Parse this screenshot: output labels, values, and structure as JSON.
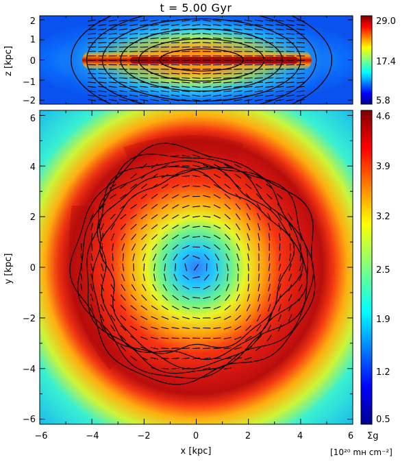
{
  "title": "t = 5.00 Gyr",
  "chart_data": [
    {
      "type": "heatmap",
      "panel": "edge-on",
      "ylabel": "z [kpc]",
      "xlim": [
        -6,
        6
      ],
      "ylim": [
        -2.2,
        2.2
      ],
      "yticks": [
        "2",
        "1",
        "0",
        "−1",
        "−2"
      ],
      "colorbar_ticks": [
        "29.0",
        "17.4",
        "5.8"
      ],
      "colormap": "jet",
      "overlays": [
        "magnetic field vectors",
        "field lines"
      ]
    },
    {
      "type": "heatmap",
      "panel": "face-on",
      "xlabel": "x [kpc]",
      "ylabel": "y [kpc]",
      "xlim": [
        -6,
        6
      ],
      "ylim": [
        -6.2,
        6.2
      ],
      "xticks": [
        "−6",
        "−4",
        "−2",
        "0",
        "2",
        "4",
        "6"
      ],
      "yticks": [
        "6",
        "4",
        "2",
        "0",
        "−2",
        "−4",
        "−6"
      ],
      "colorbar_ticks": [
        "4.6",
        "3.9",
        "3.2",
        "2.5",
        "1.9",
        "1.2",
        "0.5"
      ],
      "colorbar_label": "Σg",
      "colorbar_unit": "[10²⁰ mʜ cm⁻²]",
      "colormap": "jet",
      "overlays": [
        "magnetic field vectors",
        "field lines"
      ]
    }
  ]
}
